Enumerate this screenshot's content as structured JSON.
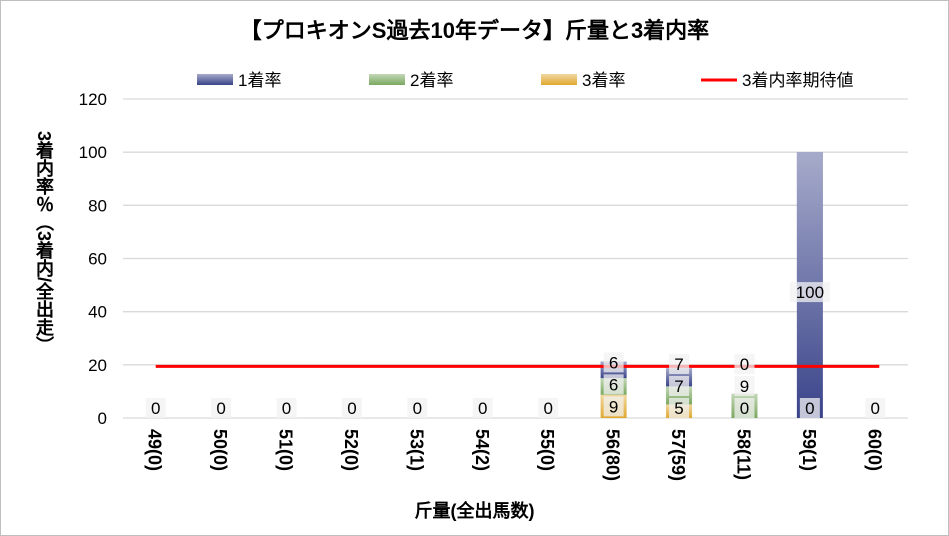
{
  "chart_data": {
    "type": "bar",
    "stacked": true,
    "title": "【プロキオンS過去10年データ】斤量と3着内率",
    "xlabel": "斤量(全出馬数)",
    "ylabel": "3着内率％（3着内/全出走）",
    "ylim": [
      0,
      120
    ],
    "yticks": [
      0,
      20,
      40,
      60,
      80,
      100,
      120
    ],
    "grid": true,
    "legend_position": "top",
    "categories": [
      "49(0)",
      "50(0)",
      "51(0)",
      "52(0)",
      "53(1)",
      "54(2)",
      "55(0)",
      "56(80)",
      "57(59)",
      "58(11)",
      "59(1)",
      "60(0)"
    ],
    "series": [
      {
        "name": "3着率",
        "color": "#e0a830",
        "values": [
          0,
          0,
          0,
          0,
          0,
          0,
          0,
          8.75,
          5.1,
          0,
          0,
          0
        ],
        "labels": [
          "",
          "",
          "",
          "",
          "",
          "",
          "",
          "9",
          "5",
          "0",
          "0",
          ""
        ]
      },
      {
        "name": "2着率",
        "color": "#7aa860",
        "values": [
          0,
          0,
          0,
          0,
          0,
          0,
          0,
          6.25,
          6.8,
          9.1,
          0,
          0
        ],
        "labels": [
          "",
          "",
          "",
          "",
          "",
          "",
          "",
          "6",
          "7",
          "9",
          "",
          ""
        ]
      },
      {
        "name": "1着率",
        "color": "#3a448a",
        "values": [
          0,
          0,
          0,
          0,
          0,
          0,
          0,
          6.25,
          6.8,
          0,
          100,
          0
        ],
        "labels": [
          "0",
          "0",
          "0",
          "0",
          "0",
          "0",
          "0",
          "6",
          "7",
          "0",
          "100",
          "0"
        ]
      }
    ],
    "reference_line": {
      "name": "3着内率期待値",
      "color": "#ff0000",
      "value": 19.4
    }
  }
}
